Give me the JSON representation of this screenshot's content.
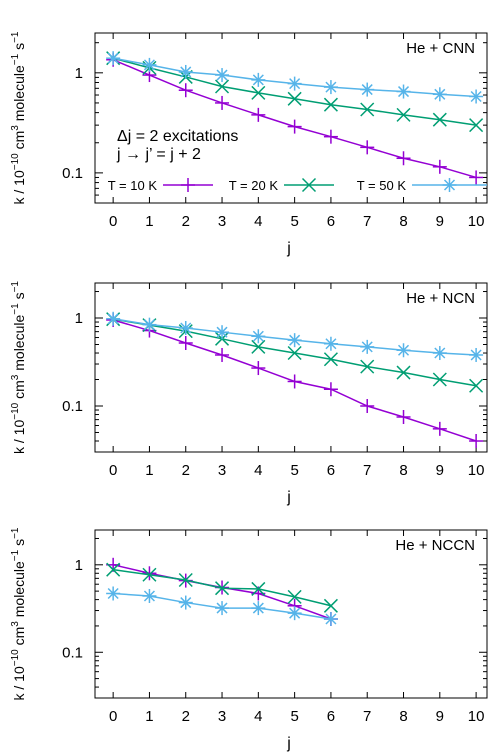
{
  "chart_data": [
    {
      "type": "line",
      "panel_label": "He + CNN",
      "annotation_line1": "Δj = 2 excitations",
      "annotation_line2": "j → j’ = j + 2",
      "xlabel": "j",
      "ylabel_pre": "k / 10",
      "ylabel_exp1": "−10",
      "ylabel_mid": " cm",
      "ylabel_exp2": "3",
      "ylabel_mid2": " molecule",
      "ylabel_exp3": "−1",
      "ylabel_mid3": " s",
      "ylabel_exp4": "−1",
      "y_scale": "log",
      "ylim": [
        0.05,
        2.5
      ],
      "xlim": [
        -0.5,
        10.3
      ],
      "yticks": [
        0.1,
        1
      ],
      "ytick_labels": [
        "0.1",
        "1"
      ],
      "xticks": [
        0,
        1,
        2,
        3,
        4,
        5,
        6,
        7,
        8,
        9,
        10
      ],
      "xtick_labels": [
        "0",
        "1",
        "2",
        "3",
        "4",
        "5",
        "6",
        "7",
        "8",
        "9",
        "10"
      ],
      "legend_position": "inside-bottom",
      "series": [
        {
          "name": "T = 10 K",
          "color": "#9400d3",
          "marker": "plus",
          "x": [
            0,
            1,
            2,
            3,
            4,
            5,
            6,
            7,
            8,
            9,
            10
          ],
          "values": [
            1.35,
            0.95,
            0.67,
            0.5,
            0.38,
            0.29,
            0.23,
            0.18,
            0.14,
            0.115,
            0.09
          ]
        },
        {
          "name": "T = 20 K",
          "color": "#009e73",
          "marker": "cross",
          "x": [
            0,
            1,
            2,
            3,
            4,
            5,
            6,
            7,
            8,
            9,
            10
          ],
          "values": [
            1.4,
            1.12,
            0.91,
            0.73,
            0.63,
            0.55,
            0.48,
            0.43,
            0.38,
            0.34,
            0.3
          ]
        },
        {
          "name": "T = 50 K",
          "color": "#56b4e9",
          "marker": "star",
          "x": [
            0,
            1,
            2,
            3,
            4,
            5,
            6,
            7,
            8,
            9,
            10
          ],
          "values": [
            1.4,
            1.2,
            1.02,
            0.95,
            0.85,
            0.78,
            0.72,
            0.68,
            0.65,
            0.61,
            0.58
          ]
        }
      ]
    },
    {
      "type": "line",
      "panel_label": "He + NCN",
      "xlabel": "j",
      "ylabel_pre": "k / 10",
      "ylabel_exp1": "−10",
      "ylabel_mid": " cm",
      "ylabel_exp2": "3",
      "ylabel_mid2": " molecule",
      "ylabel_exp3": "−1",
      "ylabel_mid3": " s",
      "ylabel_exp4": "−1",
      "y_scale": "log",
      "ylim": [
        0.03,
        2.5
      ],
      "xlim": [
        -0.5,
        10.3
      ],
      "yticks": [
        0.1,
        1
      ],
      "ytick_labels": [
        "0.1",
        "1"
      ],
      "xticks": [
        0,
        1,
        2,
        3,
        4,
        5,
        6,
        7,
        8,
        9,
        10
      ],
      "xtick_labels": [
        "0",
        "1",
        "2",
        "3",
        "4",
        "5",
        "6",
        "7",
        "8",
        "9",
        "10"
      ],
      "series": [
        {
          "name": "T = 10 K",
          "color": "#9400d3",
          "marker": "plus",
          "x": [
            0,
            1,
            2,
            3,
            4,
            5,
            6,
            7,
            8,
            9,
            10
          ],
          "values": [
            0.95,
            0.72,
            0.52,
            0.38,
            0.27,
            0.19,
            0.155,
            0.1,
            0.075,
            0.055,
            0.04
          ]
        },
        {
          "name": "T = 20 K",
          "color": "#009e73",
          "marker": "cross",
          "x": [
            0,
            1,
            2,
            3,
            4,
            5,
            6,
            7,
            8,
            9,
            10
          ],
          "values": [
            0.97,
            0.83,
            0.71,
            0.58,
            0.47,
            0.4,
            0.34,
            0.28,
            0.24,
            0.2,
            0.17
          ]
        },
        {
          "name": "T = 50 K",
          "color": "#56b4e9",
          "marker": "star",
          "x": [
            0,
            1,
            2,
            3,
            4,
            5,
            6,
            7,
            8,
            9,
            10
          ],
          "values": [
            0.98,
            0.84,
            0.77,
            0.69,
            0.62,
            0.56,
            0.51,
            0.47,
            0.43,
            0.4,
            0.38
          ]
        }
      ]
    },
    {
      "type": "line",
      "panel_label": "He + NCCN",
      "xlabel": "j",
      "ylabel_pre": "k / 10",
      "ylabel_exp1": "−10",
      "ylabel_mid": " cm",
      "ylabel_exp2": "3",
      "ylabel_mid2": " molecule",
      "ylabel_exp3": "−1",
      "ylabel_mid3": " s",
      "ylabel_exp4": "−1",
      "y_scale": "log",
      "ylim": [
        0.03,
        2.5
      ],
      "xlim": [
        -0.5,
        10.3
      ],
      "yticks": [
        0.1,
        1
      ],
      "ytick_labels": [
        "0.1",
        "1"
      ],
      "xticks": [
        0,
        1,
        2,
        3,
        4,
        5,
        6,
        7,
        8,
        9,
        10
      ],
      "xtick_labels": [
        "0",
        "1",
        "2",
        "3",
        "4",
        "5",
        "6",
        "7",
        "8",
        "9",
        "10"
      ],
      "series": [
        {
          "name": "T = 10 K",
          "color": "#9400d3",
          "marker": "plus",
          "x": [
            0,
            1,
            2,
            3,
            4,
            5,
            6
          ],
          "values": [
            1.0,
            0.8,
            0.66,
            0.55,
            0.47,
            0.34,
            0.24
          ]
        },
        {
          "name": "T = 20 K",
          "color": "#009e73",
          "marker": "cross",
          "x": [
            0,
            1,
            2,
            3,
            4,
            5,
            6
          ],
          "values": [
            0.88,
            0.77,
            0.67,
            0.54,
            0.53,
            0.43,
            0.34
          ]
        },
        {
          "name": "T = 50 K",
          "color": "#56b4e9",
          "marker": "star",
          "x": [
            0,
            1,
            2,
            3,
            4,
            5,
            6
          ],
          "values": [
            0.47,
            0.44,
            0.37,
            0.32,
            0.32,
            0.28,
            0.24
          ]
        }
      ]
    }
  ]
}
